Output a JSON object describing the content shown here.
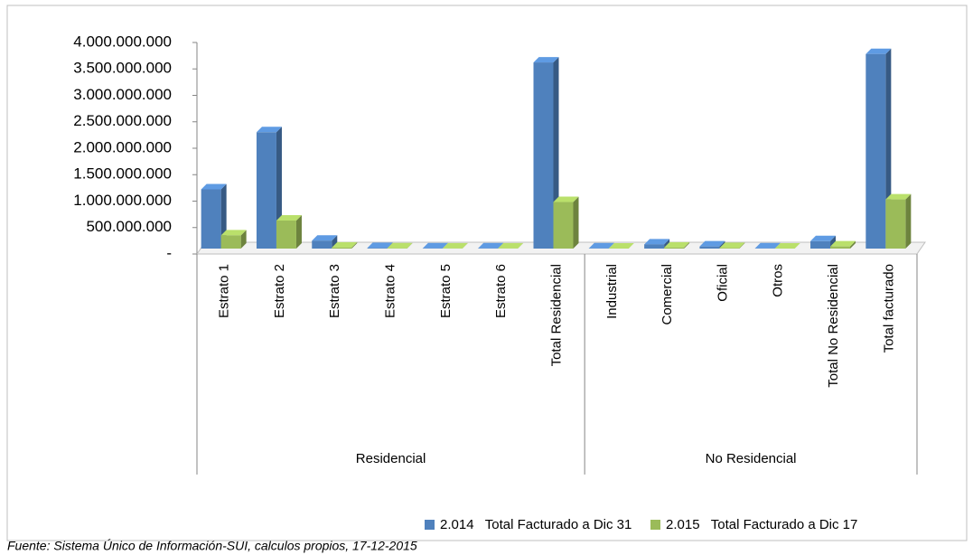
{
  "chart_data": {
    "type": "bar3d",
    "categories": [
      "Estrato 1",
      "Estrato 2",
      "Estrato 3",
      "Estrato 4",
      "Estrato 5",
      "Estrato 6",
      "Total Residencial",
      "Industrial",
      "Comercial",
      "Oficial",
      "Otros",
      "Total No Residencial",
      "Total facturado"
    ],
    "groups": [
      {
        "name": "Residencial",
        "size": 7
      },
      {
        "name": "No Residencial",
        "size": 6
      }
    ],
    "series": [
      {
        "name": "2.014   Total Facturado a Dic 31",
        "color": "#4f81bd",
        "values": [
          1120000000,
          2200000000,
          150000000,
          10000000,
          5000000,
          5000000,
          3520000000,
          5000000,
          80000000,
          40000000,
          5000000,
          140000000,
          3680000000
        ]
      },
      {
        "name": "2.015   Total Facturado a Dic 17",
        "color": "#9bbb59",
        "values": [
          250000000,
          530000000,
          20000000,
          5000000,
          2000000,
          2000000,
          880000000,
          1000000,
          20000000,
          10000000,
          1000000,
          40000000,
          930000000
        ]
      }
    ],
    "ylim": [
      0,
      4000000000
    ],
    "yticks": [
      {
        "value": 0,
        "label": "-"
      },
      {
        "value": 500000000,
        "label": "500.000.000"
      },
      {
        "value": 1000000000,
        "label": "1.000.000.000"
      },
      {
        "value": 1500000000,
        "label": "1.500.000.000"
      },
      {
        "value": 2000000000,
        "label": "2.000.000.000"
      },
      {
        "value": 2500000000,
        "label": "2.500.000.000"
      },
      {
        "value": 3000000000,
        "label": "3.000.000.000"
      },
      {
        "value": 3500000000,
        "label": "3.500.000.000"
      },
      {
        "value": 4000000000,
        "label": "4.000.000.000"
      }
    ],
    "source": "Fuente: Sistema Único de Información-SUI, calculos propios, 17-12-2015"
  }
}
